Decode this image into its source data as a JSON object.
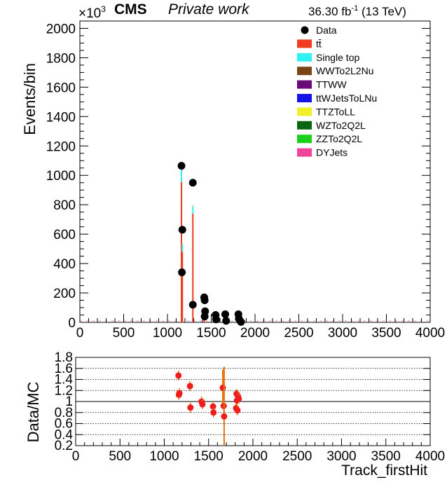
{
  "header": {
    "experiment": "CMS",
    "status": "Private work",
    "exp_scale": "×10",
    "exp_power": "3",
    "lumi_value": "36.30 fb",
    "lumi_power": "-1",
    "lumi_energy": " (13 TeV)"
  },
  "legend": [
    {
      "label": "Data",
      "marker": "dot",
      "color": "#000000"
    },
    {
      "label": "tt̄",
      "marker": "box",
      "color": "#f03b20"
    },
    {
      "label": "Single top",
      "marker": "box",
      "color": "#33f0f0"
    },
    {
      "label": "WWTo2L2Nu",
      "marker": "box",
      "color": "#7a4416"
    },
    {
      "label": "TTWW",
      "marker": "box",
      "color": "#6a0a78"
    },
    {
      "label": "ttWJetsToLNu",
      "marker": "box",
      "color": "#1414e6"
    },
    {
      "label": "TTZToLL",
      "marker": "box",
      "color": "#f0f028"
    },
    {
      "label": "WZTo2Q2L",
      "marker": "box",
      "color": "#0b6614"
    },
    {
      "label": "ZZTo2Q2L",
      "marker": "box",
      "color": "#1ad11a"
    },
    {
      "label": "DYJets",
      "marker": "box",
      "color": "#f0449a"
    }
  ],
  "chart_data": [
    {
      "type": "bar",
      "panel": "main",
      "ylabel": "Events/bin",
      "xlabel": "",
      "xlim": [
        0,
        4000
      ],
      "ylim": [
        0,
        2050
      ],
      "y_unit_multiplier": "x10^3",
      "x_ticks": [
        0,
        500,
        1000,
        1500,
        2000,
        2500,
        3000,
        3500,
        4000
      ],
      "y_ticks": [
        0,
        200,
        400,
        600,
        800,
        1000,
        1200,
        1400,
        1600,
        1800,
        2000
      ],
      "mc_stack": [
        {
          "x": 1160,
          "segments": [
            {
              "name": "tt̄",
              "value": 955
            },
            {
              "name": "Single top",
              "value": 100
            },
            {
              "name": "DYJets",
              "value": 8
            }
          ]
        },
        {
          "x": 1170,
          "segments": [
            {
              "name": "tt̄",
              "value": 480
            },
            {
              "name": "Single top",
              "value": 50
            }
          ]
        },
        {
          "x": 1290,
          "segments": [
            {
              "name": "tt̄",
              "value": 740
            },
            {
              "name": "Single top",
              "value": 50
            },
            {
              "name": "TTZToLL",
              "value": 6
            }
          ]
        },
        {
          "x": 1420,
          "segments": [
            {
              "name": "tt̄",
              "value": 90
            }
          ]
        },
        {
          "x": 1550,
          "segments": [
            {
              "name": "tt̄",
              "value": 50
            }
          ]
        },
        {
          "x": 1660,
          "segments": [
            {
              "name": "tt̄",
              "value": 30
            }
          ]
        },
        {
          "x": 1820,
          "segments": [
            {
              "name": "tt̄",
              "value": 40
            }
          ]
        }
      ],
      "data_points": [
        {
          "x": 1160,
          "y": 1065
        },
        {
          "x": 1170,
          "y": 630
        },
        {
          "x": 1165,
          "y": 340
        },
        {
          "x": 1290,
          "y": 950
        },
        {
          "x": 1290,
          "y": 120
        },
        {
          "x": 1420,
          "y": 170
        },
        {
          "x": 1425,
          "y": 150
        },
        {
          "x": 1430,
          "y": 75
        },
        {
          "x": 1425,
          "y": 40
        },
        {
          "x": 1550,
          "y": 50
        },
        {
          "x": 1555,
          "y": 20
        },
        {
          "x": 1660,
          "y": 55
        },
        {
          "x": 1670,
          "y": 10
        },
        {
          "x": 1810,
          "y": 55
        },
        {
          "x": 1815,
          "y": 25
        },
        {
          "x": 1830,
          "y": 10
        },
        {
          "x": 1840,
          "y": 3
        }
      ]
    },
    {
      "type": "scatter",
      "panel": "ratio",
      "ylabel": "Data/MC",
      "xlabel": "Track_firstHit",
      "xlim": [
        0,
        4000
      ],
      "ylim": [
        0.2,
        1.8
      ],
      "x_ticks": [
        0,
        500,
        1000,
        1500,
        2000,
        2500,
        3000,
        3500,
        4000
      ],
      "y_ticks": [
        0.2,
        0.4,
        0.6,
        0.8,
        1,
        1.2,
        1.4,
        1.6,
        1.8
      ],
      "reference_line": 1,
      "points": [
        {
          "x": 1160,
          "y": 1.47
        },
        {
          "x": 1165,
          "y": 1.12
        },
        {
          "x": 1170,
          "y": 1.15
        },
        {
          "x": 1290,
          "y": 1.28
        },
        {
          "x": 1295,
          "y": 0.89
        },
        {
          "x": 1420,
          "y": 1.0
        },
        {
          "x": 1430,
          "y": 0.95
        },
        {
          "x": 1550,
          "y": 0.91
        },
        {
          "x": 1555,
          "y": 0.8
        },
        {
          "x": 1660,
          "y": 1.25,
          "err": 0.33
        },
        {
          "x": 1670,
          "y": 0.92
        },
        {
          "x": 1675,
          "y": 0.73,
          "err": 0.9
        },
        {
          "x": 1810,
          "y": 0.88
        },
        {
          "x": 1815,
          "y": 1.14
        },
        {
          "x": 1820,
          "y": 1.02
        },
        {
          "x": 1825,
          "y": 0.84
        },
        {
          "x": 1830,
          "y": 1.1
        },
        {
          "x": 1840,
          "y": 1.05
        }
      ]
    }
  ]
}
